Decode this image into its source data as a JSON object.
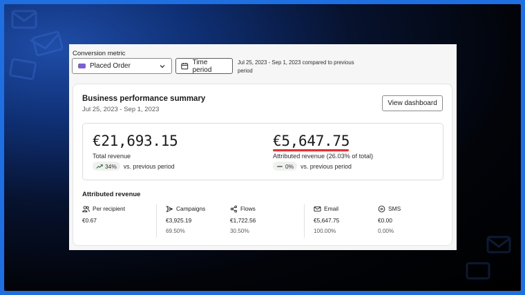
{
  "controls": {
    "metric_label": "Conversion metric",
    "metric_value": "Placed Order",
    "time_button": "Time period",
    "period_text": "Jul 25, 2023 - Sep 1, 2023 compared to previous period"
  },
  "card": {
    "title": "Business performance summary",
    "subtitle": "Jul 25, 2023 - Sep 1, 2023",
    "view_button": "View dashboard"
  },
  "summary": {
    "total": {
      "value": "€21,693.15",
      "label": "Total revenue",
      "change": "34%",
      "change_label": "vs. previous period"
    },
    "attributed": {
      "value": "€5,647.75",
      "label": "Attributed revenue (26.03% of total)",
      "change": "0%",
      "change_label": "vs. previous period"
    }
  },
  "attributed": {
    "title": "Attributed revenue",
    "columns": [
      {
        "label": "Per recipient",
        "icon": "people-icon",
        "value": "€0.67",
        "pct": ""
      },
      {
        "label": "Campaigns",
        "icon": "send-icon",
        "value": "€3,925.19",
        "pct": "69.50%"
      },
      {
        "label": "Flows",
        "icon": "flow-icon",
        "value": "€1,722.56",
        "pct": "30.50%"
      },
      {
        "label": "Email",
        "icon": "mail-icon",
        "value": "€5,647.75",
        "pct": "100.00%"
      },
      {
        "label": "SMS",
        "icon": "sms-icon",
        "value": "€0.00",
        "pct": "0.00%"
      }
    ]
  },
  "colors": {
    "accent_purple": "#7a5fd6",
    "highlight_red": "#e23232",
    "frame_blue": "#1f6fe0"
  }
}
